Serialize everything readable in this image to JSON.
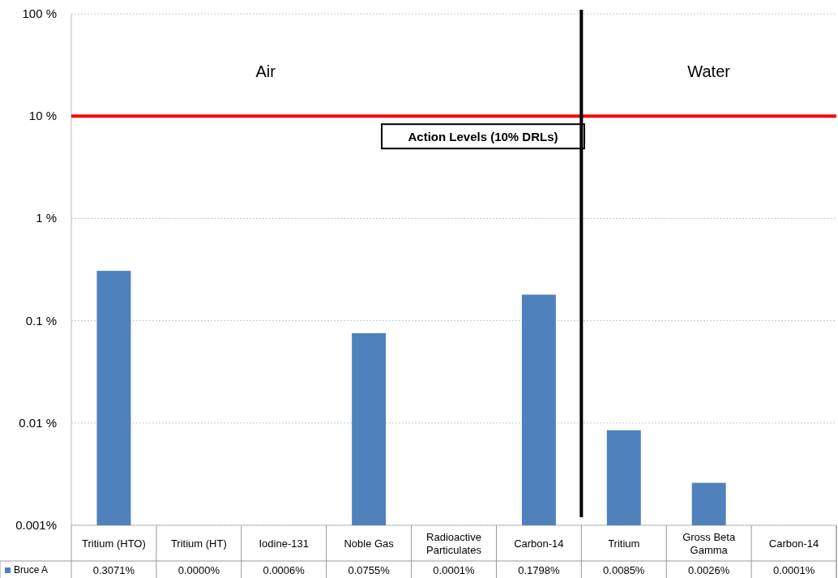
{
  "chart_data": {
    "type": "bar",
    "categories": [
      "Tritium (HTO)",
      "Tritium (HT)",
      "Iodine-131",
      "Noble Gas",
      "Radioactive Particulates",
      "Carbon-14",
      "Tritium",
      "Gross Beta Gamma",
      "Carbon-14"
    ],
    "series": [
      {
        "name": "Bruce A",
        "color": "#4f81bd",
        "values": [
          0.3071,
          null,
          null,
          0.0755,
          null,
          0.1798,
          0.0085,
          0.0026,
          null
        ],
        "value_labels": [
          "0.3071%",
          "0.0000%",
          "0.0006%",
          "0.0755%",
          "0.0001%",
          "0.1798%",
          "0.0085%",
          "0.0026%",
          "0.0001%"
        ]
      }
    ],
    "log": true,
    "ylim": [
      0.001,
      100
    ],
    "yticks": [
      {
        "value": 0.001,
        "label": "0.001%"
      },
      {
        "value": 0.01,
        "label": "0.01 %"
      },
      {
        "value": 0.1,
        "label": "0.1 %"
      },
      {
        "value": 1,
        "label": "1 %"
      },
      {
        "value": 10,
        "label": "10 %"
      },
      {
        "value": 100,
        "label": "100 %"
      }
    ],
    "grid": "y",
    "legend": "bottom",
    "ref_lines": [
      {
        "axis": "y",
        "value": 10,
        "label": "Action Levels (10% DRLs)",
        "color": "#ff0000"
      }
    ],
    "annotations": [
      "Air",
      "Water"
    ]
  }
}
